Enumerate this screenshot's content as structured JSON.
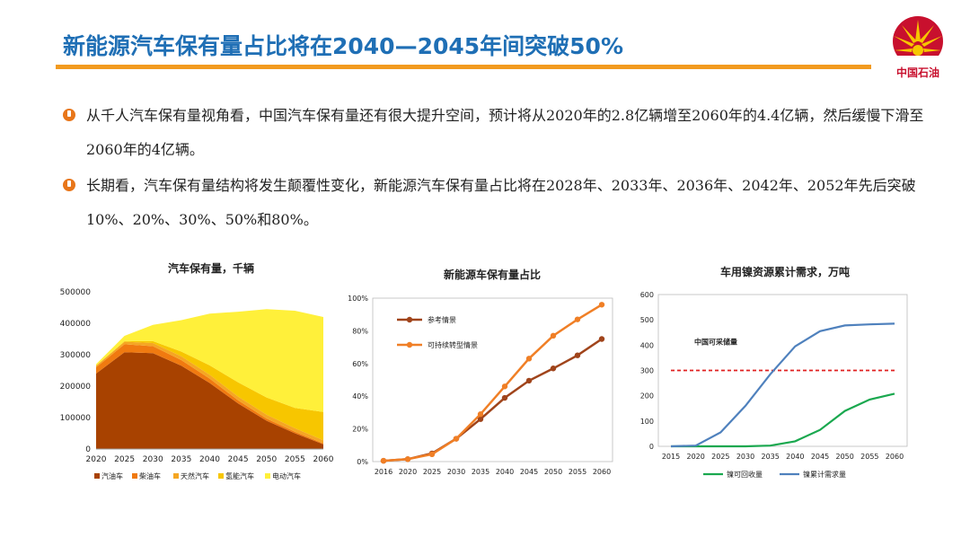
{
  "header": {
    "title": "新能源汽车保有量占比将在2040—2045年间突破50%",
    "logo_text": "中国石油"
  },
  "bullets": [
    {
      "text": "从千人汽车保有量视角看，中国汽车保有量还有很大提升空间，预计将从2020年的2.8亿辆增至2060年的4.4亿辆，然后缓慢下滑至2060年的4亿辆。"
    },
    {
      "text": "长期看，汽车保有量结构将发生颠覆性变化，新能源汽车保有量占比将在2028年、2033年、2036年、2042年、2052年先后突破10%、20%、30%、50%和80%。"
    }
  ],
  "colors": {
    "title_blue": "#1f6fb5",
    "rule_orange": "#f29a1f",
    "bullet_orange": "#e8761a",
    "logo_red": "#c8102e",
    "logo_yellow": "#f7c600"
  },
  "chart_data": [
    {
      "type": "area",
      "stacked": true,
      "title": "汽车保有量，千辆",
      "x": [
        2020,
        2025,
        2030,
        2035,
        2040,
        2045,
        2050,
        2055,
        2060
      ],
      "ylim": [
        0,
        500000
      ],
      "yticks": [
        0,
        100000,
        200000,
        300000,
        400000,
        500000
      ],
      "series": [
        {
          "name": "汽油车",
          "color": "#a84200",
          "values": [
            240000,
            308000,
            305000,
            265000,
            210000,
            145000,
            90000,
            50000,
            15000
          ]
        },
        {
          "name": "柴油车",
          "color": "#f07a10",
          "values": [
            20000,
            25000,
            22000,
            18000,
            14000,
            10000,
            7000,
            5000,
            3000
          ]
        },
        {
          "name": "天然汽车",
          "color": "#f5a623",
          "values": [
            5000,
            8000,
            10000,
            12000,
            12000,
            12000,
            12000,
            11000,
            10000
          ]
        },
        {
          "name": "氢能汽车",
          "color": "#f7c600",
          "values": [
            0,
            2000,
            6000,
            15000,
            30000,
            45000,
            55000,
            65000,
            90000
          ]
        },
        {
          "name": "电动汽车",
          "color": "#fff03a",
          "values": [
            5000,
            17000,
            52000,
            100000,
            165000,
            225000,
            281000,
            309000,
            302000
          ]
        }
      ],
      "legend_position": "bottom"
    },
    {
      "type": "line",
      "title": "新能源车保有量占比",
      "x": [
        2016,
        2020,
        2025,
        2030,
        2035,
        2040,
        2045,
        2050,
        2055,
        2060
      ],
      "ylim": [
        0,
        100
      ],
      "yticks": [
        "0%",
        "20%",
        "40%",
        "60%",
        "80%",
        "100%"
      ],
      "series": [
        {
          "name": "参考情景",
          "color": "#a0441b",
          "values": [
            0.5,
            1.5,
            5,
            14,
            26,
            39,
            49.5,
            57,
            65,
            75
          ]
        },
        {
          "name": "可持续转型情景",
          "color": "#f07f26",
          "values": [
            0.5,
            1.5,
            4.5,
            14,
            29,
            46,
            63,
            77,
            87,
            96
          ]
        }
      ],
      "legend_position": "top-left"
    },
    {
      "type": "line",
      "title": "车用镍资源累计需求，万吨",
      "x": [
        2015,
        2020,
        2025,
        2030,
        2035,
        2040,
        2045,
        2050,
        2055,
        2060
      ],
      "ylim": [
        0,
        600
      ],
      "yticks": [
        0,
        100,
        200,
        300,
        400,
        500,
        600
      ],
      "series": [
        {
          "name": "镍可回收量",
          "color": "#1aa84f",
          "values": [
            0,
            0,
            0,
            0,
            3,
            20,
            65,
            140,
            185,
            208
          ]
        },
        {
          "name": "镍累计需求量",
          "color": "#4f81bd",
          "values": [
            0,
            3,
            55,
            160,
            285,
            395,
            455,
            478,
            482,
            485
          ]
        }
      ],
      "reference_line": {
        "label": "中国可采储量",
        "value": 300,
        "color": "#e02020"
      },
      "legend_position": "bottom"
    }
  ]
}
